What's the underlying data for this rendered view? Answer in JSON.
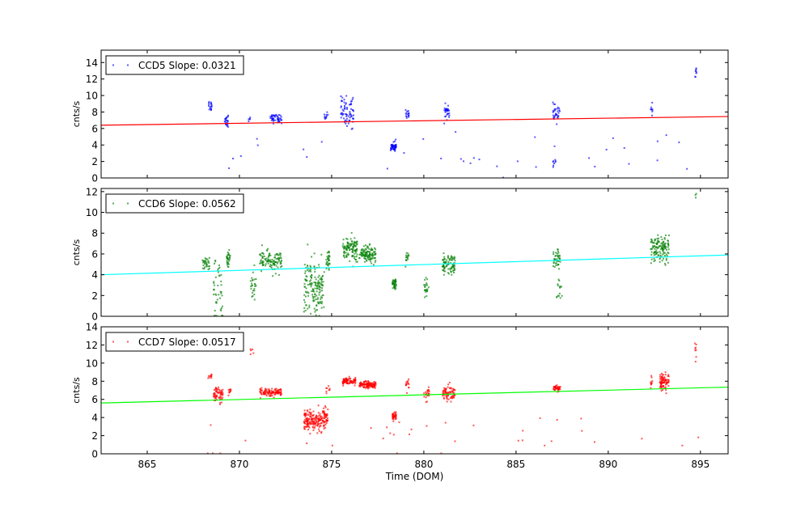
{
  "chart_data": {
    "type": "scatter",
    "xlabel": "Time (DOM)",
    "xlim": [
      862.5,
      896.5
    ],
    "xticks": [
      865,
      870,
      875,
      880,
      885,
      890,
      895
    ],
    "panels": [
      {
        "legend": "CCD5 Slope: 0.0321",
        "legend_placement": "top-left",
        "ylabel": "cnts/s",
        "ylim": [
          0,
          15.5
        ],
        "yticks": [
          0,
          2,
          4,
          6,
          8,
          10,
          12,
          14
        ],
        "color": "#0000ff",
        "fit": {
          "color": "#ff0000",
          "y_start": 6.4,
          "y_end": 7.45
        },
        "clusters": [
          {
            "x0": 868.3,
            "x1": 868.5,
            "y": 8.8,
            "sd": 0.35,
            "n": 16
          },
          {
            "x0": 869.2,
            "x1": 869.4,
            "y": 7.0,
            "sd": 0.45,
            "n": 22
          },
          {
            "x0": 870.5,
            "x1": 870.6,
            "y": 7.2,
            "sd": 0.2,
            "n": 5
          },
          {
            "x0": 871.6,
            "x1": 872.3,
            "y": 7.2,
            "sd": 0.25,
            "n": 45
          },
          {
            "x0": 874.6,
            "x1": 874.8,
            "y": 7.6,
            "sd": 0.3,
            "n": 10
          },
          {
            "x0": 875.5,
            "x1": 876.2,
            "y": 8.0,
            "sd": 0.9,
            "n": 70
          },
          {
            "x0": 878.2,
            "x1": 878.5,
            "y": 3.8,
            "sd": 0.3,
            "n": 45
          },
          {
            "x0": 879.0,
            "x1": 879.2,
            "y": 7.8,
            "sd": 0.3,
            "n": 15
          },
          {
            "x0": 881.1,
            "x1": 881.4,
            "y": 8.0,
            "sd": 0.4,
            "n": 28
          },
          {
            "x0": 887.0,
            "x1": 887.4,
            "y": 7.8,
            "sd": 0.5,
            "n": 32
          },
          {
            "x0": 887.0,
            "x1": 887.2,
            "y": 1.8,
            "sd": 0.3,
            "n": 8
          },
          {
            "x0": 892.3,
            "x1": 892.4,
            "y": 8.3,
            "sd": 0.3,
            "n": 8
          },
          {
            "x0": 894.7,
            "x1": 894.8,
            "y": 12.6,
            "sd": 0.4,
            "n": 8
          },
          {
            "x0": 868.0,
            "x1": 895.0,
            "y": 3.0,
            "sd": 1.5,
            "n": 35
          }
        ]
      },
      {
        "legend": "CCD6 Slope: 0.0562",
        "legend_placement": "top-left",
        "ylabel": "cnts/s",
        "ylim": [
          0,
          12.3
        ],
        "yticks": [
          0,
          2,
          4,
          6,
          8,
          10,
          12
        ],
        "color": "#008000",
        "fit": {
          "color": "#00ffff",
          "y_start": 4.0,
          "y_end": 5.9
        },
        "clusters": [
          {
            "x0": 868.0,
            "x1": 868.4,
            "y": 5.0,
            "sd": 0.4,
            "n": 30
          },
          {
            "x0": 868.6,
            "x1": 869.1,
            "y": 2.0,
            "sd": 1.4,
            "n": 45
          },
          {
            "x0": 869.3,
            "x1": 869.5,
            "y": 5.5,
            "sd": 0.4,
            "n": 30
          },
          {
            "x0": 870.6,
            "x1": 870.9,
            "y": 3.0,
            "sd": 1.0,
            "n": 25
          },
          {
            "x0": 871.1,
            "x1": 872.3,
            "y": 5.3,
            "sd": 0.5,
            "n": 110
          },
          {
            "x0": 873.5,
            "x1": 874.6,
            "y": 2.8,
            "sd": 1.3,
            "n": 160
          },
          {
            "x0": 874.7,
            "x1": 874.9,
            "y": 5.3,
            "sd": 0.4,
            "n": 30
          },
          {
            "x0": 875.6,
            "x1": 876.4,
            "y": 6.5,
            "sd": 0.6,
            "n": 110
          },
          {
            "x0": 876.5,
            "x1": 877.4,
            "y": 6.0,
            "sd": 0.4,
            "n": 110
          },
          {
            "x0": 878.3,
            "x1": 878.5,
            "y": 3.0,
            "sd": 0.3,
            "n": 40
          },
          {
            "x0": 879.0,
            "x1": 879.2,
            "y": 5.5,
            "sd": 0.4,
            "n": 15
          },
          {
            "x0": 880.0,
            "x1": 880.3,
            "y": 2.6,
            "sd": 0.5,
            "n": 22
          },
          {
            "x0": 881.0,
            "x1": 881.7,
            "y": 5.0,
            "sd": 0.5,
            "n": 85
          },
          {
            "x0": 887.0,
            "x1": 887.4,
            "y": 5.3,
            "sd": 0.5,
            "n": 40
          },
          {
            "x0": 887.2,
            "x1": 887.5,
            "y": 3.0,
            "sd": 1.0,
            "n": 15
          },
          {
            "x0": 892.3,
            "x1": 893.3,
            "y": 6.5,
            "sd": 0.6,
            "n": 130
          },
          {
            "x0": 894.7,
            "x1": 894.8,
            "y": 11.5,
            "sd": 0.5,
            "n": 4
          }
        ]
      },
      {
        "legend": "CCD7 Slope: 0.0517",
        "legend_placement": "top-left",
        "ylabel": "cnts/s",
        "ylim": [
          0,
          14
        ],
        "yticks": [
          0,
          2,
          4,
          6,
          8,
          10,
          12,
          14
        ],
        "color": "#ff0000",
        "fit": {
          "color": "#00ff00",
          "y_start": 5.6,
          "y_end": 7.35
        },
        "clusters": [
          {
            "x0": 868.3,
            "x1": 868.5,
            "y": 8.5,
            "sd": 0.2,
            "n": 10
          },
          {
            "x0": 868.6,
            "x1": 869.1,
            "y": 6.5,
            "sd": 0.4,
            "n": 65
          },
          {
            "x0": 869.4,
            "x1": 869.6,
            "y": 7.0,
            "sd": 0.2,
            "n": 10
          },
          {
            "x0": 870.6,
            "x1": 870.8,
            "y": 11.3,
            "sd": 0.4,
            "n": 5
          },
          {
            "x0": 871.1,
            "x1": 872.3,
            "y": 6.8,
            "sd": 0.2,
            "n": 110
          },
          {
            "x0": 873.5,
            "x1": 874.8,
            "y": 3.7,
            "sd": 0.6,
            "n": 210
          },
          {
            "x0": 874.7,
            "x1": 874.9,
            "y": 7.0,
            "sd": 0.3,
            "n": 8
          },
          {
            "x0": 875.6,
            "x1": 876.3,
            "y": 8.0,
            "sd": 0.2,
            "n": 85
          },
          {
            "x0": 876.5,
            "x1": 877.4,
            "y": 7.6,
            "sd": 0.2,
            "n": 125
          },
          {
            "x0": 878.3,
            "x1": 878.5,
            "y": 4.1,
            "sd": 0.2,
            "n": 40
          },
          {
            "x0": 879.0,
            "x1": 879.2,
            "y": 7.6,
            "sd": 0.3,
            "n": 15
          },
          {
            "x0": 880.0,
            "x1": 880.3,
            "y": 6.5,
            "sd": 0.4,
            "n": 25
          },
          {
            "x0": 881.0,
            "x1": 881.7,
            "y": 6.6,
            "sd": 0.4,
            "n": 75
          },
          {
            "x0": 887.0,
            "x1": 887.4,
            "y": 7.2,
            "sd": 0.2,
            "n": 40
          },
          {
            "x0": 892.3,
            "x1": 892.4,
            "y": 8.0,
            "sd": 0.4,
            "n": 10
          },
          {
            "x0": 892.8,
            "x1": 893.3,
            "y": 8.0,
            "sd": 0.4,
            "n": 85
          },
          {
            "x0": 894.7,
            "x1": 894.8,
            "y": 11.5,
            "sd": 1.0,
            "n": 8
          },
          {
            "x0": 868.0,
            "x1": 895.0,
            "y": 2.0,
            "sd": 1.5,
            "n": 35
          }
        ]
      }
    ]
  }
}
